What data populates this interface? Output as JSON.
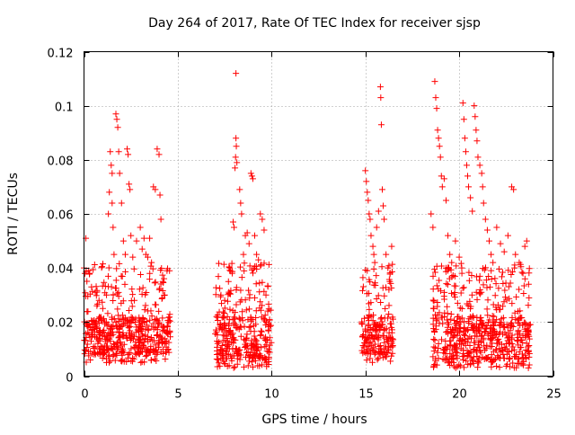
{
  "chart_data": {
    "type": "scatter",
    "title": "Day 264 of 2017, Rate Of TEC Index for receiver sjsp",
    "xlabel": "GPS time / hours",
    "ylabel": "ROTI / TECUs",
    "xlim": [
      0,
      25
    ],
    "ylim": [
      0,
      0.12
    ],
    "xticks": [
      0,
      5,
      10,
      15,
      20,
      25
    ],
    "xtick_labels": [
      "0",
      "5",
      "10",
      "15",
      "20",
      "25"
    ],
    "yticks": [
      0,
      0.02,
      0.04,
      0.06,
      0.08,
      0.1,
      0.12
    ],
    "ytick_labels": [
      "0",
      "0.02",
      "0.04",
      "0.06",
      "0.08",
      "0.1",
      "0.12"
    ],
    "grid": true,
    "marker": "+",
    "color": "#ff0000",
    "series": [
      {
        "clusters": [
          {
            "x_range": [
              0.0,
              4.6
            ],
            "y_core": [
              0.008,
              0.022
            ]
          },
          {
            "x_range": [
              7.0,
              10.0
            ],
            "y_core": [
              0.006,
              0.022
            ]
          },
          {
            "x_range": [
              14.8,
              16.5
            ],
            "y_core": [
              0.008,
              0.022
            ]
          },
          {
            "x_range": [
              18.6,
              23.8
            ],
            "y_core": [
              0.006,
              0.022
            ]
          }
        ],
        "points": [
          [
            0.1,
            0.051
          ],
          [
            0.25,
            0.039
          ],
          [
            0.3,
            0.038
          ],
          [
            0.4,
            0.033
          ],
          [
            0.6,
            0.031
          ],
          [
            0.8,
            0.028
          ],
          [
            1.0,
            0.025
          ],
          [
            1.2,
            0.03
          ],
          [
            1.3,
            0.06
          ],
          [
            1.35,
            0.068
          ],
          [
            1.4,
            0.083
          ],
          [
            1.45,
            0.078
          ],
          [
            1.5,
            0.075
          ],
          [
            1.5,
            0.064
          ],
          [
            1.55,
            0.055
          ],
          [
            1.6,
            0.045
          ],
          [
            1.7,
            0.097
          ],
          [
            1.75,
            0.095
          ],
          [
            1.8,
            0.092
          ],
          [
            1.85,
            0.083
          ],
          [
            1.9,
            0.075
          ],
          [
            2.0,
            0.064
          ],
          [
            2.1,
            0.05
          ],
          [
            2.2,
            0.045
          ],
          [
            2.3,
            0.084
          ],
          [
            2.35,
            0.082
          ],
          [
            2.4,
            0.071
          ],
          [
            2.45,
            0.069
          ],
          [
            2.5,
            0.052
          ],
          [
            2.6,
            0.044
          ],
          [
            2.8,
            0.05
          ],
          [
            3.0,
            0.055
          ],
          [
            3.1,
            0.047
          ],
          [
            3.2,
            0.051
          ],
          [
            3.3,
            0.045
          ],
          [
            3.4,
            0.044
          ],
          [
            3.5,
            0.051
          ],
          [
            3.6,
            0.042
          ],
          [
            3.7,
            0.07
          ],
          [
            3.8,
            0.069
          ],
          [
            3.9,
            0.084
          ],
          [
            4.0,
            0.082
          ],
          [
            4.05,
            0.067
          ],
          [
            4.1,
            0.058
          ],
          [
            4.2,
            0.035
          ],
          [
            4.3,
            0.03
          ],
          [
            7.3,
            0.03
          ],
          [
            7.5,
            0.028
          ],
          [
            7.7,
            0.035
          ],
          [
            7.9,
            0.038
          ],
          [
            7.95,
            0.057
          ],
          [
            8.0,
            0.055
          ],
          [
            8.05,
            0.077
          ],
          [
            8.08,
            0.081
          ],
          [
            8.1,
            0.088
          ],
          [
            8.12,
            0.085
          ],
          [
            8.15,
            0.079
          ],
          [
            8.1,
            0.112
          ],
          [
            8.3,
            0.069
          ],
          [
            8.35,
            0.064
          ],
          [
            8.4,
            0.06
          ],
          [
            8.5,
            0.045
          ],
          [
            8.6,
            0.052
          ],
          [
            8.7,
            0.053
          ],
          [
            8.8,
            0.049
          ],
          [
            8.9,
            0.075
          ],
          [
            8.95,
            0.074
          ],
          [
            9.0,
            0.073
          ],
          [
            9.1,
            0.052
          ],
          [
            9.2,
            0.045
          ],
          [
            9.3,
            0.043
          ],
          [
            9.4,
            0.06
          ],
          [
            9.5,
            0.058
          ],
          [
            9.6,
            0.054
          ],
          [
            9.7,
            0.03
          ],
          [
            15.0,
            0.076
          ],
          [
            15.05,
            0.072
          ],
          [
            15.1,
            0.068
          ],
          [
            15.15,
            0.065
          ],
          [
            15.2,
            0.06
          ],
          [
            15.25,
            0.058
          ],
          [
            15.3,
            0.052
          ],
          [
            15.4,
            0.048
          ],
          [
            15.45,
            0.045
          ],
          [
            15.5,
            0.042
          ],
          [
            15.6,
            0.055
          ],
          [
            15.7,
            0.061
          ],
          [
            15.8,
            0.107
          ],
          [
            15.82,
            0.103
          ],
          [
            15.85,
            0.093
          ],
          [
            15.9,
            0.069
          ],
          [
            15.95,
            0.063
          ],
          [
            16.0,
            0.058
          ],
          [
            16.1,
            0.045
          ],
          [
            16.2,
            0.04
          ],
          [
            16.3,
            0.035
          ],
          [
            16.4,
            0.048
          ],
          [
            18.5,
            0.06
          ],
          [
            18.6,
            0.055
          ],
          [
            18.7,
            0.109
          ],
          [
            18.75,
            0.103
          ],
          [
            18.8,
            0.099
          ],
          [
            18.85,
            0.091
          ],
          [
            18.9,
            0.088
          ],
          [
            18.95,
            0.085
          ],
          [
            19.0,
            0.081
          ],
          [
            19.05,
            0.074
          ],
          [
            19.1,
            0.07
          ],
          [
            19.2,
            0.073
          ],
          [
            19.3,
            0.065
          ],
          [
            19.4,
            0.052
          ],
          [
            19.5,
            0.045
          ],
          [
            19.6,
            0.042
          ],
          [
            19.8,
            0.05
          ],
          [
            20.0,
            0.044
          ],
          [
            20.2,
            0.101
          ],
          [
            20.25,
            0.095
          ],
          [
            20.3,
            0.088
          ],
          [
            20.35,
            0.083
          ],
          [
            20.4,
            0.078
          ],
          [
            20.45,
            0.074
          ],
          [
            20.5,
            0.07
          ],
          [
            20.6,
            0.066
          ],
          [
            20.7,
            0.061
          ],
          [
            20.8,
            0.1
          ],
          [
            20.85,
            0.096
          ],
          [
            20.9,
            0.091
          ],
          [
            20.95,
            0.087
          ],
          [
            21.0,
            0.081
          ],
          [
            21.1,
            0.078
          ],
          [
            21.2,
            0.075
          ],
          [
            21.25,
            0.07
          ],
          [
            21.3,
            0.064
          ],
          [
            21.4,
            0.058
          ],
          [
            21.5,
            0.054
          ],
          [
            21.6,
            0.05
          ],
          [
            21.7,
            0.045
          ],
          [
            21.8,
            0.042
          ],
          [
            22.0,
            0.055
          ],
          [
            22.2,
            0.049
          ],
          [
            22.4,
            0.046
          ],
          [
            22.6,
            0.052
          ],
          [
            22.8,
            0.07
          ],
          [
            22.9,
            0.069
          ],
          [
            23.0,
            0.045
          ],
          [
            23.2,
            0.042
          ],
          [
            23.4,
            0.038
          ],
          [
            23.5,
            0.048
          ],
          [
            23.6,
            0.05
          ],
          [
            23.7,
            0.034
          ]
        ]
      }
    ]
  }
}
